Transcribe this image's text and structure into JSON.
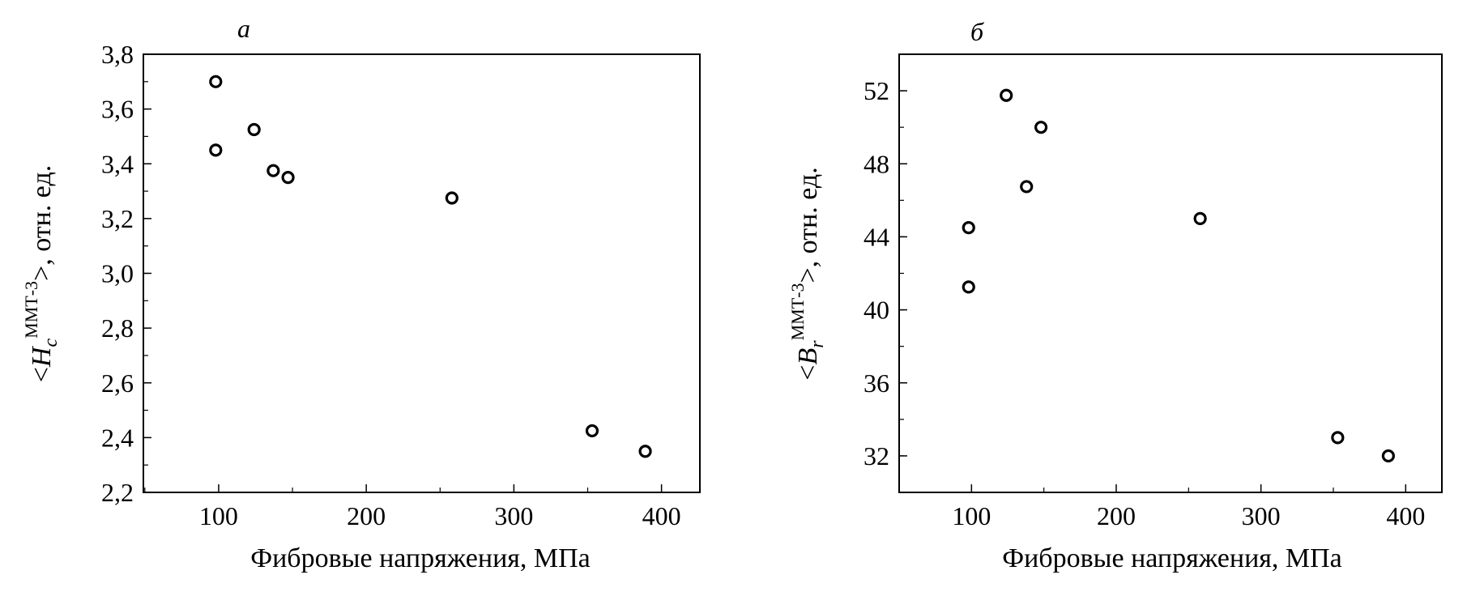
{
  "chart_data": [
    {
      "type": "scatter",
      "panel_label": "а",
      "title": "",
      "xlabel": "Фибровые напряжения, МПа",
      "ylabel": {
        "open": "<",
        "symbol": "H",
        "subscript": "c",
        "superscript": "ММТ-3",
        "close": ">, отн. ед."
      },
      "xlim": [
        49,
        426
      ],
      "ylim": [
        2.2,
        3.8
      ],
      "xticks": [
        100,
        200,
        300,
        400
      ],
      "xtick_labels": [
        "100",
        "200",
        "300",
        "400"
      ],
      "yticks": [
        2.2,
        2.4,
        2.6,
        2.8,
        3.0,
        3.2,
        3.4,
        3.6,
        3.8
      ],
      "ytick_labels": [
        "2,2",
        "2,4",
        "2,6",
        "2,8",
        "3,0",
        "3,2",
        "3,4",
        "3,6",
        "3,8"
      ],
      "grid": false,
      "marker": "open-circle",
      "x": [
        98,
        98,
        124,
        137,
        147,
        258,
        353,
        389
      ],
      "y": [
        3.7,
        3.45,
        3.525,
        3.375,
        3.35,
        3.275,
        2.425,
        2.35
      ]
    },
    {
      "type": "scatter",
      "panel_label": "б",
      "title": "",
      "xlabel": "Фибровые напряжения, МПа",
      "ylabel": {
        "open": "<",
        "symbol": "B",
        "subscript": "r",
        "superscript": "ММТ-3",
        "close": ">, отн. ед."
      },
      "xlim": [
        50,
        425
      ],
      "ylim": [
        30,
        54
      ],
      "xticks": [
        100,
        200,
        300,
        400
      ],
      "xtick_labels": [
        "100",
        "200",
        "300",
        "400"
      ],
      "yticks": [
        32,
        36,
        40,
        44,
        48,
        52
      ],
      "ytick_labels": [
        "32",
        "36",
        "40",
        "44",
        "48",
        "52"
      ],
      "grid": false,
      "marker": "open-circle",
      "x": [
        98,
        98,
        124,
        138,
        148,
        258,
        353,
        388
      ],
      "y": [
        44.5,
        41.25,
        51.75,
        46.75,
        50.0,
        45.0,
        33.0,
        32.0
      ]
    }
  ]
}
